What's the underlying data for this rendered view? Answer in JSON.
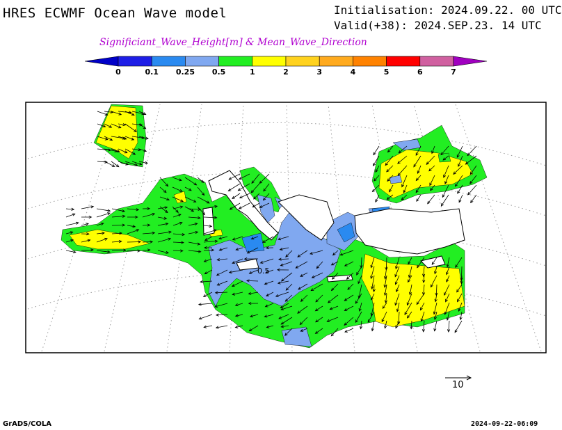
{
  "header": {
    "title": "HRES ECWMF Ocean Wave model",
    "initialisation": "Initialisation: 2024.09.22. 00 UTC",
    "valid": "Valid(+38): 2024.SEP.23. 14 UTC",
    "subtitle": "Significiant_Wave_Height[m] & Mean_Wave_Direction",
    "subtitle_color": "#b000d0"
  },
  "colorbar": {
    "levels": [
      "0",
      "0.1",
      "0.25",
      "0.5",
      "1",
      "2",
      "3",
      "4",
      "5",
      "6",
      "7"
    ],
    "colors": [
      "#1e1ee6",
      "#2a8af0",
      "#80a8f0",
      "#22ee22",
      "#ffff00",
      "#ffd21e",
      "#ffaa1e",
      "#ff8200",
      "#ff0000",
      "#d060a0"
    ],
    "under_color": "#0000c8",
    "over_color": "#a000c0"
  },
  "map": {
    "land_color": "#ffffff",
    "outline_color": "#000000",
    "graticule": "dotted",
    "contour_label": "0.5"
  },
  "reference_vector": {
    "label": "10"
  },
  "footer": {
    "left": "GrADS/COLA",
    "right": "2024-09-22-06:09"
  }
}
